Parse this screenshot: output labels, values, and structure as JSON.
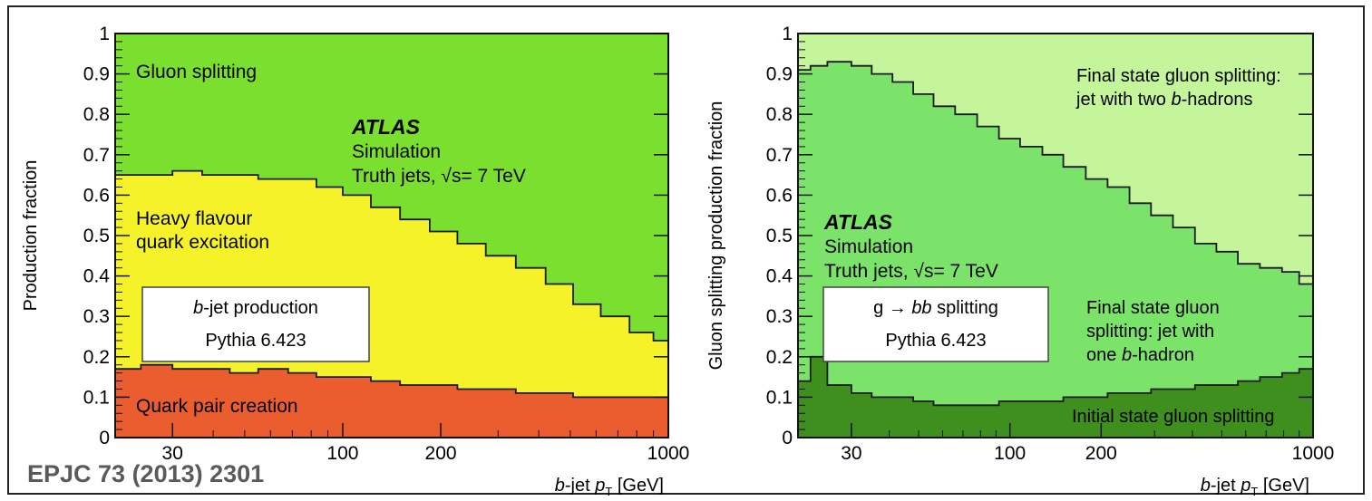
{
  "citation": "EPJC 73 (2013) 2301",
  "chart_data": [
    {
      "type": "area",
      "subtype": "stacked-step",
      "title": "",
      "xlabel_prefix": "b",
      "xlabel_main": "-jet ",
      "xlabel_var": "p",
      "xlabel_sub": "T",
      "xlabel_unit": " [GeV]",
      "ylabel": "Production fraction",
      "x_scale": "log",
      "xlim": [
        20,
        1000
      ],
      "ylim": [
        0,
        1
      ],
      "x_ticks": [
        30,
        100,
        200,
        1000
      ],
      "y_ticks": [
        0,
        0.1,
        0.2,
        0.3,
        0.4,
        0.5,
        0.6,
        0.7,
        0.8,
        0.9,
        1
      ],
      "y_tick_labels": [
        "0",
        "0.1",
        "0.2",
        "0.3",
        "0.4",
        "0.5",
        "0.6",
        "0.7",
        "0.8",
        "0.9",
        "1"
      ],
      "x": [
        20,
        24,
        30,
        37,
        45,
        55,
        68,
        83,
        100,
        122,
        150,
        185,
        225,
        275,
        340,
        420,
        510,
        620,
        760,
        900,
        1000
      ],
      "series": [
        {
          "name": "Quark pair creation",
          "color": "#ea5d2f",
          "boundary": [
            0.17,
            0.18,
            0.17,
            0.17,
            0.16,
            0.17,
            0.16,
            0.15,
            0.15,
            0.14,
            0.13,
            0.13,
            0.12,
            0.12,
            0.11,
            0.11,
            0.1,
            0.1,
            0.1,
            0.1
          ]
        },
        {
          "name": "Heavy flavour quark excitation",
          "color": "#f6f22a",
          "boundary": [
            0.65,
            0.65,
            0.66,
            0.65,
            0.65,
            0.64,
            0.64,
            0.62,
            0.6,
            0.57,
            0.54,
            0.51,
            0.48,
            0.45,
            0.42,
            0.38,
            0.33,
            0.3,
            0.26,
            0.24
          ]
        },
        {
          "name": "Gluon splitting",
          "color": "#7bdf2f",
          "boundary": [
            1,
            1,
            1,
            1,
            1,
            1,
            1,
            1,
            1,
            1,
            1,
            1,
            1,
            1,
            1,
            1,
            1,
            1,
            1,
            1
          ]
        }
      ],
      "labels": {
        "gluon": "Gluon splitting",
        "heavy1": "Heavy flavour",
        "heavy2": "quark excitation",
        "qpc": "Quark pair creation"
      },
      "atlas": "ATLAS",
      "simulation": "Simulation",
      "truth_prefix": "Truth jets, ",
      "sqrt": "√s",
      "energy": "= 7 TeV",
      "box_line1_prefix": "b",
      "box_line1_rest": "-jet production",
      "box_line2": "Pythia 6.423"
    },
    {
      "type": "area",
      "subtype": "stacked-step",
      "title": "",
      "xlabel_prefix": "b",
      "xlabel_main": "-jet ",
      "xlabel_var": "p",
      "xlabel_sub": "T",
      "xlabel_unit": " [GeV]",
      "ylabel": "Gluon splitting production fraction",
      "x_scale": "log",
      "xlim": [
        20,
        1000
      ],
      "ylim": [
        0,
        1
      ],
      "x_ticks": [
        30,
        100,
        200,
        1000
      ],
      "y_ticks": [
        0,
        0.1,
        0.2,
        0.3,
        0.4,
        0.5,
        0.6,
        0.7,
        0.8,
        0.9,
        1
      ],
      "y_tick_labels": [
        "0",
        "0.1",
        "0.2",
        "0.3",
        "0.4",
        "0.5",
        "0.6",
        "0.7",
        "0.8",
        "0.9",
        "1"
      ],
      "x": [
        20,
        22,
        25,
        30,
        35,
        41,
        48,
        56,
        66,
        78,
        92,
        108,
        128,
        150,
        178,
        210,
        248,
        292,
        345,
        408,
        480,
        565,
        668,
        790,
        900,
        1000
      ],
      "series": [
        {
          "name": "Initial state gluon splitting",
          "color": "#3f8f1f",
          "boundary": [
            0.14,
            0.2,
            0.13,
            0.11,
            0.1,
            0.1,
            0.09,
            0.08,
            0.08,
            0.08,
            0.09,
            0.09,
            0.09,
            0.1,
            0.1,
            0.11,
            0.11,
            0.12,
            0.12,
            0.13,
            0.13,
            0.14,
            0.15,
            0.16,
            0.17
          ]
        },
        {
          "name": "Final state gluon splitting: jet with one b-hadron",
          "color": "#7ce36a",
          "boundary": [
            0.91,
            0.92,
            0.93,
            0.92,
            0.9,
            0.88,
            0.85,
            0.82,
            0.8,
            0.77,
            0.74,
            0.72,
            0.7,
            0.67,
            0.64,
            0.62,
            0.58,
            0.55,
            0.52,
            0.48,
            0.46,
            0.43,
            0.42,
            0.41,
            0.38
          ]
        },
        {
          "name": "Final state gluon splitting: jet with two b-hadrons",
          "color": "#c4f59a",
          "boundary": [
            1,
            1,
            1,
            1,
            1,
            1,
            1,
            1,
            1,
            1,
            1,
            1,
            1,
            1,
            1,
            1,
            1,
            1,
            1,
            1,
            1,
            1,
            1,
            1,
            1
          ]
        }
      ],
      "labels": {
        "two1": "Final state gluon splitting:",
        "two2_pre": "jet with two ",
        "two2_b": "b",
        "two2_post": "-hadrons",
        "one1": "Final state gluon",
        "one2": "splitting: jet with",
        "one3_pre": "one ",
        "one3_b": "b",
        "one3_post": "-hadron",
        "initial": "Initial state gluon splitting"
      },
      "atlas": "ATLAS",
      "simulation": "Simulation",
      "truth_prefix": "Truth jets, ",
      "sqrt": "√s",
      "energy": "= 7 TeV",
      "box_line1_pre": "g → ",
      "box_line1_bb": "bb",
      "box_line1_post": " splitting",
      "box_line2": "Pythia 6.423"
    }
  ]
}
